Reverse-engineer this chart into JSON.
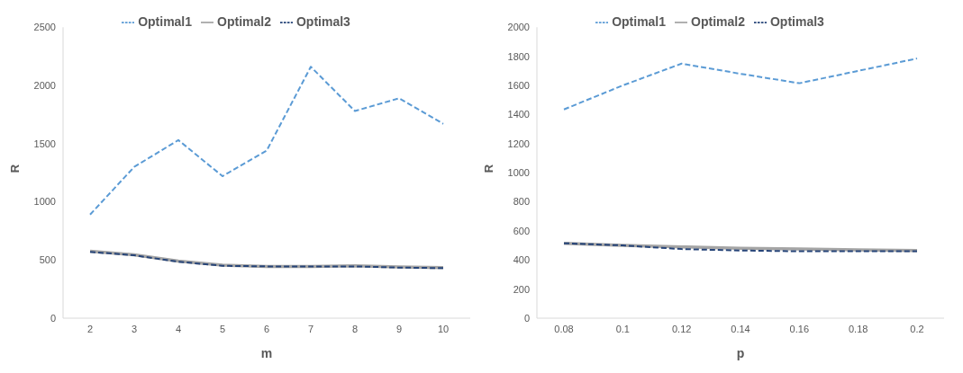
{
  "chart_data": [
    {
      "type": "line",
      "xlabel": "m",
      "ylabel": "R",
      "categories": [
        "2",
        "3",
        "4",
        "5",
        "6",
        "7",
        "8",
        "9",
        "10"
      ],
      "ylim": [
        0,
        2500
      ],
      "yticks": [
        0,
        500,
        1000,
        1500,
        2000,
        2500
      ],
      "grid": false,
      "legend": "top",
      "marker": "none",
      "series": [
        {
          "name": "Optimal1",
          "color": "#5b9bd5",
          "line_style": "dashed",
          "values": [
            890,
            1300,
            1530,
            1220,
            1440,
            2160,
            1780,
            1890,
            1670
          ]
        },
        {
          "name": "Optimal2",
          "color": "#a5a5a5",
          "line_style": "solid",
          "values": [
            575,
            545,
            490,
            455,
            445,
            445,
            450,
            440,
            435
          ]
        },
        {
          "name": "Optimal3",
          "color": "#264478",
          "line_style": "dashed",
          "values": [
            570,
            540,
            485,
            450,
            445,
            445,
            445,
            435,
            430
          ]
        }
      ]
    },
    {
      "type": "line",
      "xlabel": "p",
      "ylabel": "R",
      "categories": [
        "0.08",
        "0.1",
        "0.12",
        "0.14",
        "0.16",
        "0.18",
        "0.2"
      ],
      "ylim": [
        0,
        2000
      ],
      "yticks": [
        0,
        200,
        400,
        600,
        800,
        1000,
        1200,
        1400,
        1600,
        1800,
        2000
      ],
      "grid": false,
      "legend": "top",
      "marker": "none",
      "series": [
        {
          "name": "Optimal1",
          "color": "#5b9bd5",
          "line_style": "dashed",
          "values": [
            1435,
            1600,
            1750,
            1680,
            1615,
            1700,
            1785
          ]
        },
        {
          "name": "Optimal2",
          "color": "#a5a5a5",
          "line_style": "solid",
          "values": [
            515,
            500,
            490,
            480,
            475,
            470,
            465
          ]
        },
        {
          "name": "Optimal3",
          "color": "#264478",
          "line_style": "dashed",
          "values": [
            515,
            500,
            475,
            465,
            460,
            460,
            460
          ]
        }
      ]
    }
  ]
}
